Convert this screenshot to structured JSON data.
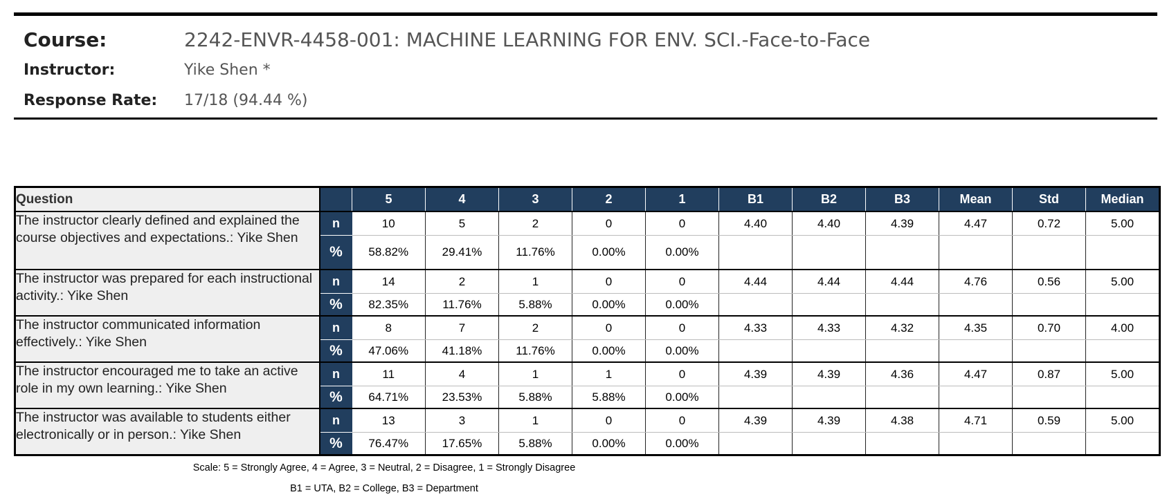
{
  "header": {
    "course_label": "Course:",
    "course_value": "2242-ENVR-4458-001: MACHINE LEARNING FOR ENV. SCI.-Face-to-Face",
    "instructor_label": "Instructor:",
    "instructor_value": "Yike Shen *",
    "response_label": "Response Rate:",
    "response_value": "17/18 (94.44 %)"
  },
  "table": {
    "question_header": "Question",
    "columns": [
      "5",
      "4",
      "3",
      "2",
      "1",
      "B1",
      "B2",
      "B3",
      "Mean",
      "Std",
      "Median"
    ],
    "n_label": "n",
    "pct_label": "%",
    "rows": [
      {
        "question": "The instructor clearly defined and explained the course objectives and expectations.: Yike Shen",
        "n": [
          "10",
          "5",
          "2",
          "0",
          "0",
          "4.40",
          "4.40",
          "4.39",
          "4.47",
          "0.72",
          "5.00"
        ],
        "pct": [
          "58.82%",
          "29.41%",
          "11.76%",
          "0.00%",
          "0.00%",
          "",
          "",
          "",
          "",
          "",
          ""
        ]
      },
      {
        "question": "The instructor was prepared for each instructional activity.: Yike Shen",
        "n": [
          "14",
          "2",
          "1",
          "0",
          "0",
          "4.44",
          "4.44",
          "4.44",
          "4.76",
          "0.56",
          "5.00"
        ],
        "pct": [
          "82.35%",
          "11.76%",
          "5.88%",
          "0.00%",
          "0.00%",
          "",
          "",
          "",
          "",
          "",
          ""
        ]
      },
      {
        "question": "The instructor communicated information effectively.: Yike Shen",
        "n": [
          "8",
          "7",
          "2",
          "0",
          "0",
          "4.33",
          "4.33",
          "4.32",
          "4.35",
          "0.70",
          "4.00"
        ],
        "pct": [
          "47.06%",
          "41.18%",
          "11.76%",
          "0.00%",
          "0.00%",
          "",
          "",
          "",
          "",
          "",
          ""
        ]
      },
      {
        "question": "The instructor encouraged me to take an active role in my own learning.: Yike Shen",
        "n": [
          "11",
          "4",
          "1",
          "1",
          "0",
          "4.39",
          "4.39",
          "4.36",
          "4.47",
          "0.87",
          "5.00"
        ],
        "pct": [
          "64.71%",
          "23.53%",
          "5.88%",
          "5.88%",
          "0.00%",
          "",
          "",
          "",
          "",
          "",
          ""
        ]
      },
      {
        "question": "The instructor was available to students either electronically or in person.: Yike Shen",
        "n": [
          "13",
          "3",
          "1",
          "0",
          "0",
          "4.39",
          "4.39",
          "4.38",
          "4.71",
          "0.59",
          "5.00"
        ],
        "pct": [
          "76.47%",
          "17.65%",
          "5.88%",
          "0.00%",
          "0.00%",
          "",
          "",
          "",
          "",
          "",
          ""
        ]
      }
    ]
  },
  "footer": {
    "scale": "Scale: 5 = Strongly Agree, 4 = Agree, 3 = Neutral, 2 = Disagree, 1 = Strongly Disagree",
    "benchmarks": "B1 = UTA, B2 = College, B3 = Department"
  },
  "colors": {
    "header_navy": "#213e5e",
    "question_bg": "#efefef"
  }
}
